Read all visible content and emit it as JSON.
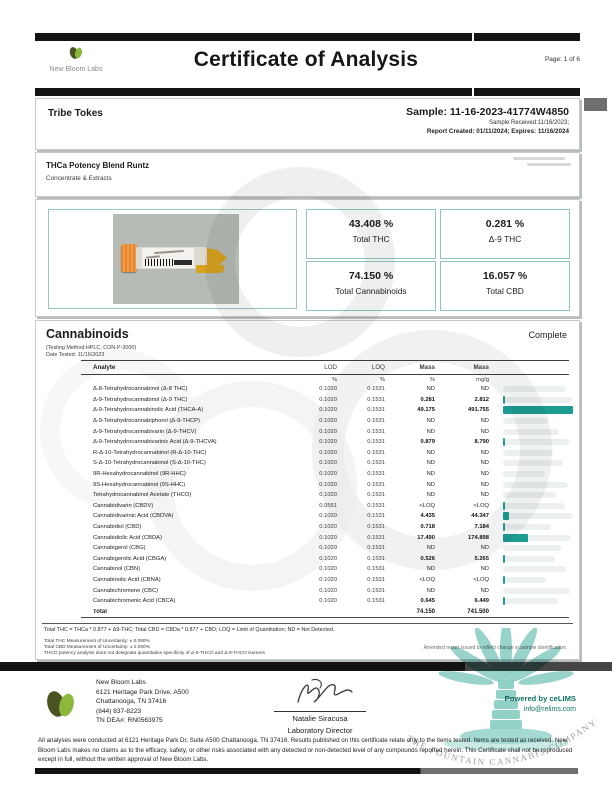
{
  "header": {
    "logo_text": "New Bloom Labs",
    "title": "Certificate of Analysis",
    "page": "Page: 1 of 6"
  },
  "sample_info": {
    "client": "Tribe Tokes",
    "sample_id": "Sample: 11-16-2023-41774W4850",
    "received": "Sample Received:11/16/2023;",
    "report_created": "Report Created: 01/11/2024; Expires: 11/16/2024"
  },
  "product": {
    "name": "THCa Potency Blend Runtz",
    "category": "Concentrate & Extracts"
  },
  "results": [
    {
      "value": "43.408 %",
      "label": "Total THC"
    },
    {
      "value": "0.281 %",
      "label": "Δ-9 THC"
    },
    {
      "value": "74.150 %",
      "label": "Total Cannabinoids"
    },
    {
      "value": "16.057 %",
      "label": "Total CBD"
    }
  ],
  "cannabinoids": {
    "section_title": "Cannabinoids",
    "status": "Complete",
    "method": "(Testing Method:HPLC, CON-P-3000)",
    "date_tested": "Date Tested: 11/16/2023",
    "columns": {
      "analyte": "Analyte",
      "lod": "LOD",
      "loq": "LOQ",
      "mass1": "Mass",
      "mass2": "Mass"
    },
    "units": {
      "lod": "%",
      "loq": "%",
      "mass1": "%",
      "mass2": "mg/g"
    },
    "rows": [
      {
        "analyte": "Δ-8-Tetrahydrocannabinol (Δ-8 THC)",
        "lod": "0.1020",
        "loq": "0.1531",
        "mass_pct": "ND",
        "mass_mgg": "ND",
        "bar": 0,
        "bg": 88
      },
      {
        "analyte": "Δ-9-Tetrahydrocannabinol (Δ-9 THC)",
        "lod": "0.1020",
        "loq": "0.1531",
        "mass_pct": "0.281",
        "mass_mgg": "2.812",
        "bar": 1,
        "bg": 96
      },
      {
        "analyte": "Δ-9-Tetrahydrocannabinolic Acid (THCA-A)",
        "lod": "0.1020",
        "loq": "0.1531",
        "mass_pct": "49.175",
        "mass_mgg": "491.755",
        "bar": 97,
        "bg": 97
      },
      {
        "analyte": "Δ-9-Tetrahydrocannabiphorol (Δ-9-THCP)",
        "lod": "0.1020",
        "loq": "0.1531",
        "mass_pct": "ND",
        "mass_mgg": "ND",
        "bar": 0,
        "bg": 62
      },
      {
        "analyte": "Δ-9-Tetrahydrocannabivarin (Δ-9-THCV)",
        "lod": "0.1020",
        "loq": "0.1531",
        "mass_pct": "ND",
        "mass_mgg": "ND",
        "bar": 0,
        "bg": 78
      },
      {
        "analyte": "Δ-9-Tetrahydrocannabivarinic Acid (Δ-9-THCVA)",
        "lod": "0.1020",
        "loq": "0.1531",
        "mass_pct": "0.879",
        "mass_mgg": "8.790",
        "bar": 2,
        "bg": 92
      },
      {
        "analyte": "R-Δ-10-Tetrahydrocannabinol (R-Δ-10-THC)",
        "lod": "0.1020",
        "loq": "0.1531",
        "mass_pct": "ND",
        "mass_mgg": "ND",
        "bar": 0,
        "bg": 70
      },
      {
        "analyte": "S-Δ-10-Tetrahydrocannabinol (S-Δ-10-THC)",
        "lod": "0.1020",
        "loq": "0.1531",
        "mass_pct": "ND",
        "mass_mgg": "ND",
        "bar": 0,
        "bg": 84
      },
      {
        "analyte": "9R-Hexahydrocannabinol (9R-HHC)",
        "lod": "0.1020",
        "loq": "0.1531",
        "mass_pct": "ND",
        "mass_mgg": "ND",
        "bar": 0,
        "bg": 58
      },
      {
        "analyte": "9S-Hexahydrocannabinol (9S-HHC)",
        "lod": "0.1020",
        "loq": "0.1531",
        "mass_pct": "ND",
        "mass_mgg": "ND",
        "bar": 0,
        "bg": 90
      },
      {
        "analyte": "Tetrahydrocannabinol Acetate (THCO)",
        "lod": "0.1020",
        "loq": "0.1531",
        "mass_pct": "ND",
        "mass_mgg": "ND",
        "bar": 0,
        "bg": 74
      },
      {
        "analyte": "Cannabidivarin (CBDV)",
        "lod": "0.0551",
        "loq": "0.1531",
        "mass_pct": "<LOQ",
        "mass_mgg": "<LOQ",
        "bar": 1,
        "bg": 86
      },
      {
        "analyte": "Cannabidivarinic Acid (CBDVA)",
        "lod": "0.1020",
        "loq": "0.1531",
        "mass_pct": "4.435",
        "mass_mgg": "44.347",
        "bar": 9,
        "bg": 97
      },
      {
        "analyte": "Cannabidiol (CBD)",
        "lod": "0.1020",
        "loq": "0.1531",
        "mass_pct": "0.718",
        "mass_mgg": "7.184",
        "bar": 2,
        "bg": 66
      },
      {
        "analyte": "Cannabidiolic Acid (CBDA)",
        "lod": "0.1020",
        "loq": "0.1531",
        "mass_pct": "17.490",
        "mass_mgg": "174.898",
        "bar": 35,
        "bg": 95
      },
      {
        "analyte": "Cannabigerol (CBG)",
        "lod": "0.1020",
        "loq": "0.1531",
        "mass_pct": "ND",
        "mass_mgg": "ND",
        "bar": 0,
        "bg": 80
      },
      {
        "analyte": "Cannabigerolic Acid (CBGA)",
        "lod": "0.1020",
        "loq": "0.1531",
        "mass_pct": "0.526",
        "mass_mgg": "5.265",
        "bar": 1.5,
        "bg": 72
      },
      {
        "analyte": "Cannabinol (CBN)",
        "lod": "0.1020",
        "loq": "0.1531",
        "mass_pct": "ND",
        "mass_mgg": "ND",
        "bar": 0,
        "bg": 88
      },
      {
        "analyte": "Cannabinolic Acid (CBNA)",
        "lod": "0.1020",
        "loq": "0.1531",
        "mass_pct": "<LOQ",
        "mass_mgg": "<LOQ",
        "bar": 1,
        "bg": 60
      },
      {
        "analyte": "Cannabichromene (CBC)",
        "lod": "0.1020",
        "loq": "0.1531",
        "mass_pct": "ND",
        "mass_mgg": "ND",
        "bar": 0,
        "bg": 93
      },
      {
        "analyte": "Cannabichromenic Acid (CBCA)",
        "lod": "0.1020",
        "loq": "0.1531",
        "mass_pct": "0.645",
        "mass_mgg": "6.449",
        "bar": 1.5,
        "bg": 76
      }
    ],
    "total": {
      "label": "Total",
      "mass_pct": "74.150",
      "mass_mgg": "741.500"
    },
    "footnote": "Total THC = THCa * 0.877 + Δ9-THC; Total CBD = CBDa * 0.877 + CBD; LOQ = Limit of Quantitation; ND = Not Detected.",
    "uncertainty": [
      "Total THC Measurement of Uncertainty: ± 0.090%",
      "Total CBD Measurement of Uncertainty: ± 2.000%",
      "THCO potency analysis does not designate quantitative specificity of Δ-8-THCO and Δ-9-THCO isomers"
    ],
    "amended_note": "Amended report issued to reflect change in sample identification."
  },
  "footer": {
    "lab_name": "New Bloom Labs",
    "address1": "6121 Heritage Park Drive, A500",
    "address2": "Chattanooga, TN 37416",
    "phone": "(844) 837-8223",
    "dea": "TN DEA#: RN0563975",
    "signer": "Natalie Siracusa",
    "signer_title": "Laboratory Director",
    "powered_by": "Powered by ceLIMS",
    "powered_email": "info@relims.com"
  },
  "disclaimer": "All analyses were conducted at 6121 Heritage Park Dr, Suite A500 Chattanooga, TN 37416. Results published on this certificate relate only to the items tested. Items are tested as received. New Bloom Labs makes no claims as to the efficacy, safety, or other risks associated with any detected or non-detected level of any compounds reported herein. This Certificate shall not be reproduced except in full, without the written approval of New Bloom Labs.",
  "watermark": {
    "company": "THE FOUNTAIN CANNABIS COMPANY"
  },
  "colors": {
    "accent_teal": "#1d9c93",
    "border_teal": "#8fc5be",
    "logo_dark": "#4a5420",
    "logo_light": "#8cb83d"
  }
}
